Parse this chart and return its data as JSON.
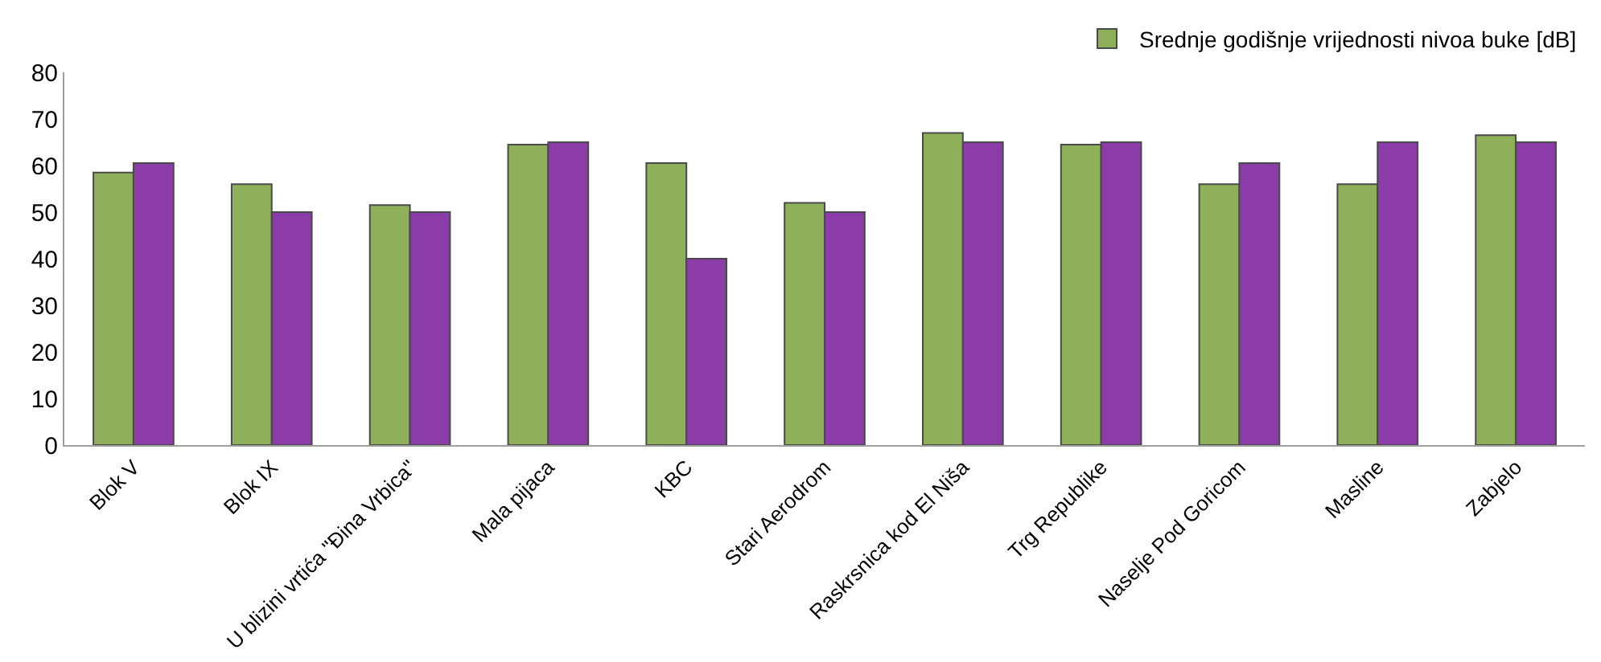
{
  "chart_data": {
    "type": "bar",
    "categories": [
      "Blok V",
      "Blok IX",
      "U blizini vrtića \"Đina Vrbica\"",
      "Mala pijaca",
      "KBC",
      "Stari Aerodrom",
      "Raskrsnica kod El Niša",
      "Trg Republike",
      "Naselje Pod Goricom",
      "Masline",
      "Zabjelo"
    ],
    "series": [
      {
        "name": "Srednje godišnje vrijednosti nivoa buke [dB]",
        "color": "#8fb05a",
        "values": [
          58.5,
          56,
          51.5,
          64.5,
          60.5,
          52,
          67,
          64.5,
          56,
          56,
          66.5
        ]
      },
      {
        "color": "#8b3ca8",
        "values": [
          60.5,
          50,
          50,
          65,
          40,
          50,
          65,
          65,
          60.5,
          65,
          65
        ]
      }
    ],
    "ylim": [
      0,
      80
    ],
    "yticks": [
      0,
      10,
      20,
      30,
      40,
      50,
      60,
      70,
      80
    ],
    "legend": "top right"
  }
}
